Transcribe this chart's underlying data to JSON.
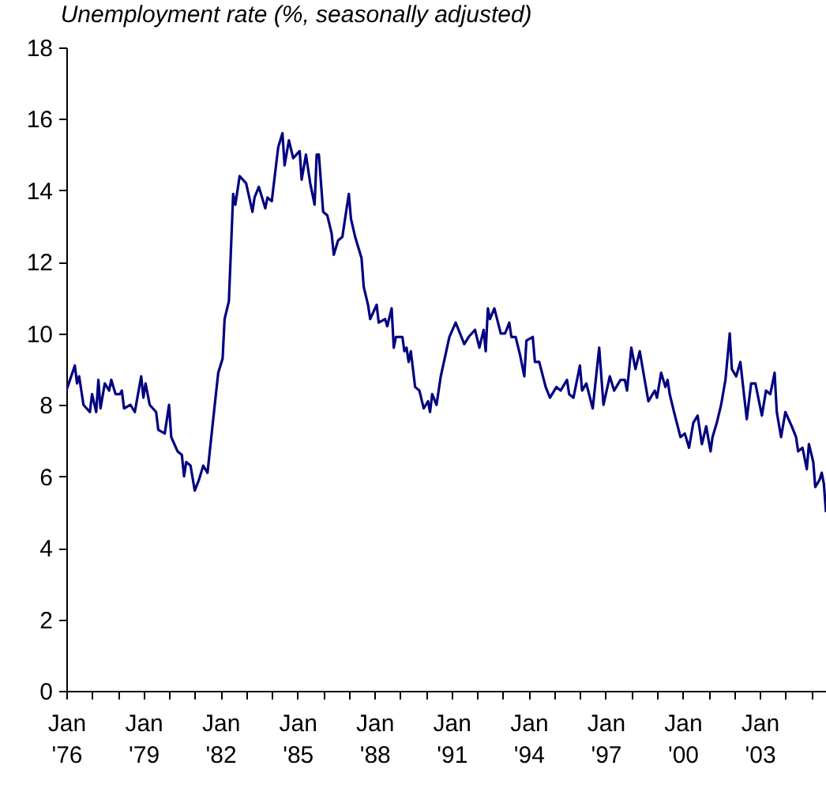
{
  "chart_data": {
    "type": "line",
    "title": "Unemployment rate (%, seasonally adjusted)",
    "x": [
      "1976-01",
      "1976-05",
      "1976-06",
      "1976-07",
      "1976-09",
      "1976-12",
      "1977-01",
      "1977-03",
      "1977-04",
      "1977-05",
      "1977-07",
      "1977-09",
      "1977-10",
      "1977-12",
      "1978-02",
      "1978-03",
      "1978-04",
      "1978-07",
      "1978-09",
      "1978-12",
      "1979-01",
      "1979-02",
      "1979-04",
      "1979-07",
      "1979-08",
      "1979-11",
      "1980-01",
      "1980-02",
      "1980-05",
      "1980-07",
      "1980-08",
      "1980-09",
      "1980-11",
      "1981-01",
      "1981-03",
      "1981-05",
      "1981-07",
      "1981-10",
      "1981-12",
      "1982-02",
      "1982-03",
      "1982-05",
      "1982-07",
      "1982-08",
      "1982-10",
      "1983-01",
      "1983-04",
      "1983-05",
      "1983-07",
      "1983-10",
      "1983-11",
      "1984-01",
      "1984-04",
      "1984-06",
      "1984-07",
      "1984-09",
      "1984-11",
      "1985-02",
      "1985-03",
      "1985-05",
      "1985-07",
      "1985-09",
      "1985-10",
      "1985-11",
      "1986-01",
      "1986-03",
      "1986-05",
      "1986-06",
      "1986-08",
      "1986-10",
      "1986-12",
      "1987-01",
      "1987-02",
      "1987-04",
      "1987-06",
      "1987-07",
      "1987-08",
      "1987-10",
      "1987-11",
      "1988-02",
      "1988-03",
      "1988-06",
      "1988-07",
      "1988-09",
      "1988-10",
      "1988-11",
      "1989-02",
      "1989-03",
      "1989-04",
      "1989-05",
      "1989-06",
      "1989-08",
      "1989-10",
      "1989-12",
      "1990-02",
      "1990-03",
      "1990-04",
      "1990-06",
      "1990-08",
      "1990-12",
      "1991-03",
      "1991-07",
      "1991-09",
      "1991-12",
      "1992-02",
      "1992-04",
      "1992-05",
      "1992-06",
      "1992-07",
      "1992-09",
      "1992-12",
      "1993-02",
      "1993-04",
      "1993-05",
      "1993-07",
      "1993-09",
      "1993-11",
      "1993-12",
      "1994-03",
      "1994-04",
      "1994-06",
      "1994-09",
      "1994-11",
      "1995-02",
      "1995-04",
      "1995-07",
      "1995-08",
      "1995-10",
      "1996-01",
      "1996-02",
      "1996-04",
      "1996-07",
      "1996-10",
      "1996-12",
      "1997-03",
      "1997-05",
      "1997-08",
      "1997-10",
      "1997-11",
      "1998-01",
      "1998-03",
      "1998-05",
      "1998-07",
      "1998-09",
      "1998-12",
      "1999-01",
      "1999-03",
      "1999-05",
      "1999-06",
      "1999-07",
      "1999-09",
      "1999-12",
      "2000-02",
      "2000-04",
      "2000-06",
      "2000-08",
      "2000-10",
      "2000-12",
      "2001-02",
      "2001-03",
      "2001-05",
      "2001-07",
      "2001-09",
      "2001-11",
      "2001-12",
      "2002-02",
      "2002-04",
      "2002-07",
      "2002-09",
      "2002-11",
      "2003-02",
      "2003-04",
      "2003-06",
      "2003-08",
      "2003-09",
      "2003-11",
      "2004-01",
      "2004-04",
      "2004-06",
      "2004-07",
      "2004-09",
      "2004-11",
      "2004-12",
      "2005-02",
      "2005-03",
      "2005-05",
      "2005-06",
      "2005-07",
      "2005-08"
    ],
    "series": [
      {
        "color": "#000080",
        "values": [
          8.4,
          9.1,
          8.6,
          8.8,
          8.0,
          7.8,
          8.3,
          7.8,
          8.7,
          7.9,
          8.6,
          8.4,
          8.7,
          8.3,
          8.3,
          8.4,
          7.9,
          8.0,
          7.8,
          8.8,
          8.2,
          8.6,
          8.0,
          7.8,
          7.3,
          7.2,
          8.0,
          7.1,
          6.7,
          6.6,
          6.0,
          6.4,
          6.3,
          5.6,
          5.9,
          6.3,
          6.1,
          7.8,
          8.9,
          9.3,
          10.4,
          10.9,
          13.9,
          13.6,
          14.4,
          14.2,
          13.4,
          13.8,
          14.1,
          13.5,
          13.8,
          13.7,
          15.2,
          15.6,
          14.7,
          15.4,
          14.9,
          15.1,
          14.3,
          15.0,
          14.2,
          13.6,
          15.0,
          15.0,
          13.4,
          13.3,
          12.8,
          12.2,
          12.6,
          12.7,
          13.5,
          13.9,
          13.2,
          12.7,
          12.3,
          12.1,
          11.3,
          10.8,
          10.4,
          10.8,
          10.3,
          10.4,
          10.2,
          10.7,
          9.6,
          9.9,
          9.9,
          9.5,
          9.6,
          9.2,
          9.5,
          8.5,
          8.4,
          7.9,
          8.1,
          7.8,
          8.3,
          8.0,
          8.8,
          9.9,
          10.3,
          9.7,
          9.9,
          10.1,
          9.6,
          10.1,
          9.5,
          10.7,
          10.4,
          10.7,
          10.0,
          10.0,
          10.3,
          9.9,
          9.9,
          9.4,
          8.8,
          9.8,
          9.9,
          9.2,
          9.2,
          8.5,
          8.2,
          8.5,
          8.4,
          8.7,
          8.3,
          8.2,
          9.1,
          8.4,
          8.6,
          7.9,
          9.6,
          8.0,
          8.8,
          8.4,
          8.7,
          8.7,
          8.4,
          9.6,
          9.0,
          9.5,
          8.8,
          8.1,
          8.4,
          8.2,
          8.9,
          8.5,
          8.7,
          8.3,
          7.8,
          7.1,
          7.2,
          6.8,
          7.5,
          7.7,
          6.9,
          7.4,
          6.7,
          7.1,
          7.5,
          8.0,
          8.7,
          10.0,
          9.0,
          8.8,
          9.2,
          7.6,
          8.6,
          8.6,
          7.7,
          8.4,
          8.3,
          8.9,
          7.8,
          7.1,
          7.8,
          7.4,
          7.1,
          6.7,
          6.8,
          6.2,
          6.9,
          6.4,
          5.7,
          5.9,
          6.1,
          5.8,
          5.0
        ]
      }
    ],
    "xlim": [
      "1976-01",
      "2005-08"
    ],
    "xticks": [
      {
        "value": "1976-01",
        "label": "Jan '76"
      },
      {
        "value": "1977-01",
        "label": null
      },
      {
        "value": "1978-01",
        "label": null
      },
      {
        "value": "1979-01",
        "label": "Jan '79"
      },
      {
        "value": "1980-01",
        "label": null
      },
      {
        "value": "1981-01",
        "label": null
      },
      {
        "value": "1982-01",
        "label": "Jan '82"
      },
      {
        "value": "1983-01",
        "label": null
      },
      {
        "value": "1984-01",
        "label": null
      },
      {
        "value": "1985-01",
        "label": "Jan '85"
      },
      {
        "value": "1986-01",
        "label": null
      },
      {
        "value": "1987-01",
        "label": null
      },
      {
        "value": "1988-01",
        "label": "Jan '88"
      },
      {
        "value": "1989-01",
        "label": null
      },
      {
        "value": "1990-01",
        "label": null
      },
      {
        "value": "1991-01",
        "label": "Jan '91"
      },
      {
        "value": "1992-01",
        "label": null
      },
      {
        "value": "1993-01",
        "label": null
      },
      {
        "value": "1994-01",
        "label": "Jan '94"
      },
      {
        "value": "1995-01",
        "label": null
      },
      {
        "value": "1996-01",
        "label": null
      },
      {
        "value": "1997-01",
        "label": "Jan '97"
      },
      {
        "value": "1998-01",
        "label": null
      },
      {
        "value": "1999-01",
        "label": null
      },
      {
        "value": "2000-01",
        "label": "Jan '00"
      },
      {
        "value": "2001-01",
        "label": null
      },
      {
        "value": "2002-01",
        "label": null
      },
      {
        "value": "2003-01",
        "label": "Jan '03"
      },
      {
        "value": "2004-01",
        "label": null
      },
      {
        "value": "2005-01",
        "label": null
      }
    ],
    "ylim": [
      0,
      18
    ],
    "yticks": [
      0,
      2,
      4,
      6,
      8,
      10,
      12,
      14,
      16,
      18
    ],
    "grid": false,
    "marker": "none",
    "line_style": "solid"
  }
}
